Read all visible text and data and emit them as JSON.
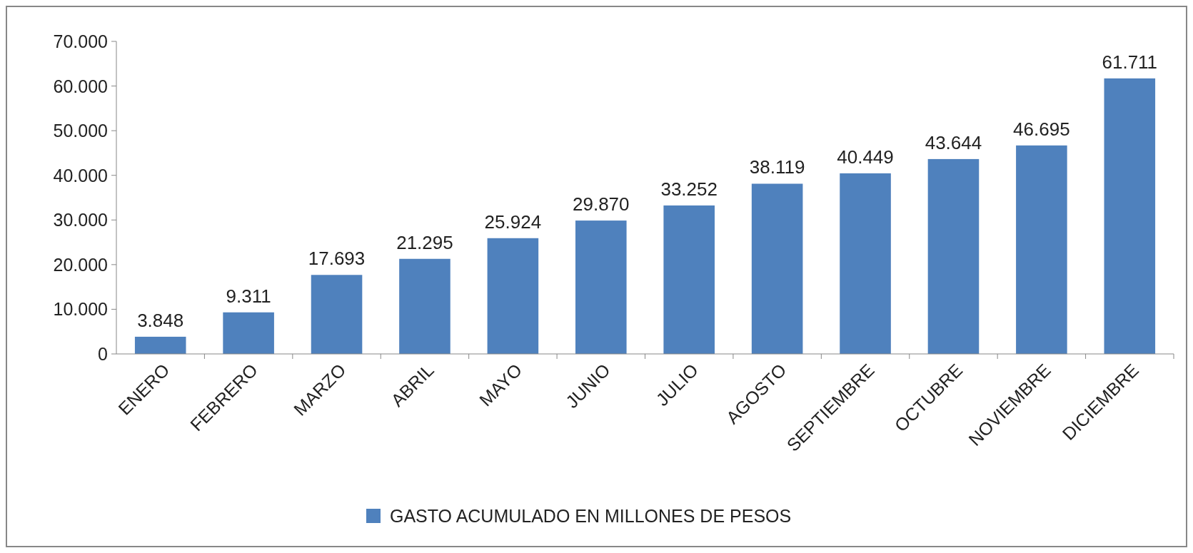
{
  "chart_data": {
    "type": "bar",
    "categories": [
      "ENERO",
      "FEBRERO",
      "MARZO",
      "ABRIL",
      "MAYO",
      "JUNIO",
      "JULIO",
      "AGOSTO",
      "SEPTIEMBRE",
      "OCTUBRE",
      "NOVIEMBRE",
      "DICIEMBRE"
    ],
    "series": [
      {
        "name": "GASTO ACUMULADO EN MILLONES DE PESOS",
        "color": "#4f81bd",
        "values": [
          3848,
          9311,
          17693,
          21295,
          25924,
          29870,
          33252,
          38119,
          40449,
          43644,
          46695,
          61711
        ],
        "value_labels": [
          "3.848",
          "9.311",
          "17.693",
          "21.295",
          "25.924",
          "29.870",
          "33.252",
          "38.119",
          "40.449",
          "43.644",
          "46.695",
          "61.711"
        ]
      }
    ],
    "ylim": [
      0,
      70000
    ],
    "yticks": [
      0,
      {
        "value": 10000,
        "label": "10.000"
      },
      {
        "value": 20000,
        "label": "20.000"
      },
      {
        "value": 30000,
        "label": "30.000"
      },
      {
        "value": 40000,
        "label": "40.000"
      },
      {
        "value": 50000,
        "label": "50.000"
      },
      {
        "value": 60000,
        "label": "60.000"
      },
      {
        "value": 70000,
        "label": "70.000"
      }
    ],
    "grid": false,
    "legend": "bottom"
  }
}
